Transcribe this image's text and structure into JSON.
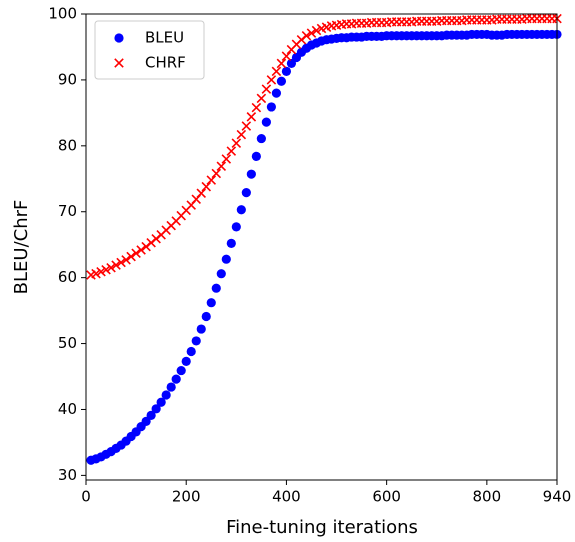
{
  "chart_data": {
    "type": "scatter",
    "x_label": "Fine-tuning iterations",
    "y_label": "BLEU/ChrF",
    "x": [
      10,
      20,
      30,
      40,
      50,
      60,
      70,
      80,
      90,
      100,
      110,
      120,
      130,
      140,
      150,
      160,
      170,
      180,
      190,
      200,
      210,
      220,
      230,
      240,
      250,
      260,
      270,
      280,
      290,
      300,
      310,
      320,
      330,
      340,
      350,
      360,
      370,
      380,
      390,
      400,
      410,
      420,
      430,
      440,
      450,
      460,
      470,
      480,
      490,
      500,
      510,
      520,
      530,
      540,
      550,
      560,
      570,
      580,
      590,
      600,
      610,
      620,
      630,
      640,
      650,
      660,
      670,
      680,
      690,
      700,
      710,
      720,
      730,
      740,
      750,
      760,
      770,
      780,
      790,
      800,
      810,
      820,
      830,
      840,
      850,
      860,
      870,
      880,
      890,
      900,
      910,
      920,
      930,
      940
    ],
    "series": [
      {
        "name": "BLEU",
        "color": "#0000ff",
        "marker": "circle",
        "values": [
          32.3,
          32.5,
          32.8,
          33.2,
          33.6,
          34.1,
          34.6,
          35.2,
          35.9,
          36.6,
          37.4,
          38.2,
          39.1,
          40.1,
          41.1,
          42.2,
          43.4,
          44.6,
          45.9,
          47.3,
          48.8,
          50.4,
          52.2,
          54.1,
          56.2,
          58.4,
          60.6,
          62.8,
          65.2,
          67.7,
          70.3,
          72.9,
          75.7,
          78.4,
          81.1,
          83.6,
          85.9,
          88.0,
          89.8,
          91.3,
          92.5,
          93.4,
          94.2,
          94.8,
          95.3,
          95.6,
          95.9,
          96.1,
          96.2,
          96.3,
          96.4,
          96.4,
          96.5,
          96.5,
          96.5,
          96.6,
          96.6,
          96.6,
          96.6,
          96.7,
          96.7,
          96.7,
          96.7,
          96.7,
          96.7,
          96.7,
          96.7,
          96.7,
          96.7,
          96.7,
          96.7,
          96.8,
          96.8,
          96.8,
          96.8,
          96.8,
          96.9,
          96.9,
          96.9,
          96.9,
          96.8,
          96.8,
          96.8,
          96.9,
          96.9,
          96.9,
          96.9,
          96.9,
          96.9,
          96.9,
          96.9,
          96.9,
          96.9,
          96.9
        ]
      },
      {
        "name": "CHRF",
        "color": "#ff0000",
        "marker": "x",
        "values": [
          60.4,
          60.6,
          60.9,
          61.2,
          61.5,
          61.9,
          62.3,
          62.7,
          63.2,
          63.7,
          64.2,
          64.7,
          65.3,
          65.9,
          66.5,
          67.2,
          67.9,
          68.6,
          69.4,
          70.2,
          71.0,
          71.9,
          72.8,
          73.8,
          74.8,
          75.8,
          76.9,
          78.0,
          79.2,
          80.4,
          81.7,
          83.0,
          84.4,
          85.8,
          87.2,
          88.6,
          90.0,
          91.3,
          92.5,
          93.6,
          94.6,
          95.4,
          96.1,
          96.7,
          97.1,
          97.5,
          97.8,
          98.0,
          98.2,
          98.3,
          98.4,
          98.5,
          98.5,
          98.6,
          98.6,
          98.6,
          98.7,
          98.7,
          98.7,
          98.7,
          98.8,
          98.8,
          98.8,
          98.8,
          98.8,
          98.9,
          98.9,
          98.9,
          98.9,
          98.9,
          99.0,
          99.0,
          99.0,
          99.0,
          99.0,
          99.1,
          99.1,
          99.1,
          99.1,
          99.1,
          99.1,
          99.2,
          99.2,
          99.2,
          99.2,
          99.2,
          99.2,
          99.3,
          99.3,
          99.3,
          99.3,
          99.3,
          99.3,
          99.3
        ]
      }
    ],
    "xlim": [
      0,
      940
    ],
    "xticks": [
      0,
      200,
      400,
      600,
      800,
      940
    ],
    "ylim": [
      29.3,
      100
    ],
    "yticks": [
      30,
      40,
      50,
      60,
      70,
      80,
      90,
      100
    ],
    "legend": "upper-left"
  }
}
